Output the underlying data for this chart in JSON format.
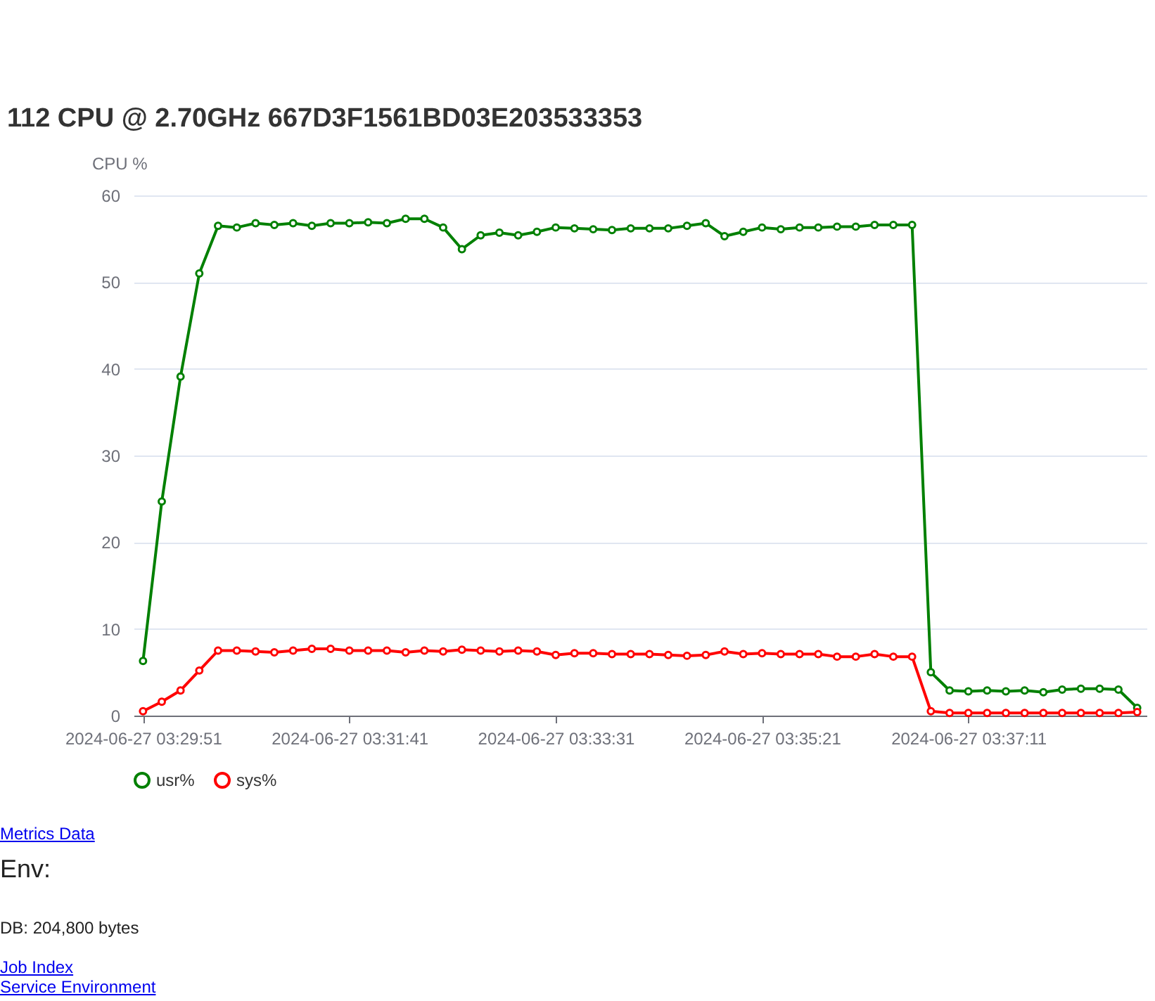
{
  "chart_data": {
    "type": "line",
    "title": "112 CPU @ 2.70GHz 667D3F1561BD03E203533353",
    "ylabel": "CPU %",
    "categories": [
      "2024-06-27 03:29:51",
      null,
      null,
      null,
      null,
      null,
      null,
      null,
      null,
      null,
      null,
      "2024-06-27 03:31:41",
      null,
      null,
      null,
      null,
      null,
      null,
      null,
      null,
      null,
      null,
      "2024-06-27 03:33:31",
      null,
      null,
      null,
      null,
      null,
      null,
      null,
      null,
      null,
      null,
      "2024-06-27 03:35:21",
      null,
      null,
      null,
      null,
      null,
      null,
      null,
      null,
      null,
      null,
      "2024-06-27 03:37:11",
      null,
      null,
      null,
      null,
      null,
      null,
      null,
      null,
      null
    ],
    "series": [
      {
        "name": "usr%",
        "color": "#008000",
        "values": [
          6.3,
          24.7,
          39.1,
          51.0,
          56.5,
          56.3,
          56.8,
          56.6,
          56.8,
          56.5,
          56.8,
          56.8,
          56.9,
          56.8,
          57.3,
          57.3,
          56.3,
          53.8,
          55.4,
          55.7,
          55.4,
          55.8,
          56.3,
          56.2,
          56.1,
          56.0,
          56.2,
          56.2,
          56.2,
          56.5,
          56.8,
          55.3,
          55.8,
          56.3,
          56.1,
          56.3,
          56.3,
          56.4,
          56.4,
          56.6,
          56.6,
          56.6,
          5.0,
          2.9,
          2.8,
          2.9,
          2.8,
          2.9,
          2.7,
          3.0,
          3.1,
          3.1,
          3.0,
          0.9
        ]
      },
      {
        "name": "sys%",
        "color": "#ff0000",
        "values": [
          0.5,
          1.6,
          2.9,
          5.2,
          7.5,
          7.5,
          7.4,
          7.3,
          7.5,
          7.7,
          7.7,
          7.5,
          7.5,
          7.5,
          7.3,
          7.5,
          7.4,
          7.6,
          7.5,
          7.4,
          7.5,
          7.4,
          7.0,
          7.2,
          7.2,
          7.1,
          7.1,
          7.1,
          7.0,
          6.9,
          7.0,
          7.4,
          7.1,
          7.2,
          7.1,
          7.1,
          7.1,
          6.8,
          6.8,
          7.1,
          6.8,
          6.8,
          0.5,
          0.3,
          0.3,
          0.3,
          0.3,
          0.3,
          0.3,
          0.3,
          0.3,
          0.3,
          0.3,
          0.4
        ]
      }
    ],
    "ylim": [
      0,
      60
    ],
    "yticks": [
      0,
      10,
      20,
      30,
      40,
      50,
      60
    ],
    "grid": "y",
    "legend": "bottom",
    "marker": "circle",
    "line_style": "solid",
    "annotations": [
      "Metrics Data",
      "Env:",
      "DB: 204,800 bytes",
      "Job Index",
      "Service Environment"
    ]
  }
}
